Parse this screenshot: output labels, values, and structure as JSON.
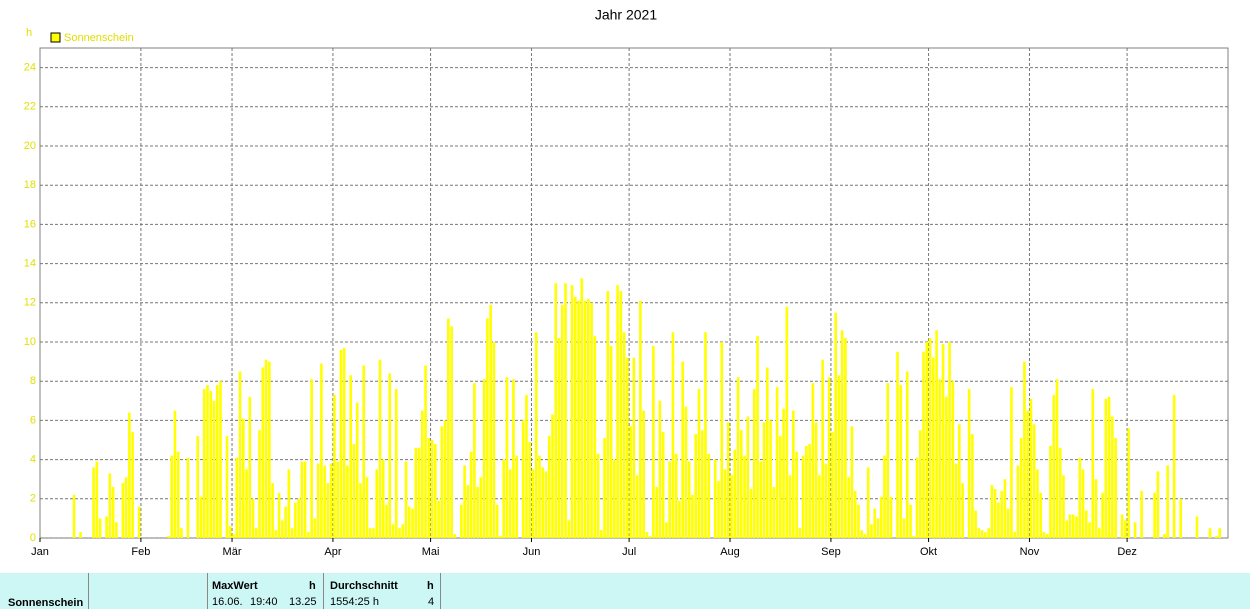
{
  "chart_data": {
    "type": "bar",
    "title": "Jahr 2021",
    "y_label": "h",
    "categories": [
      "Jan",
      null,
      null,
      null,
      null,
      null,
      null,
      null,
      null,
      null,
      null,
      null,
      null,
      null,
      null,
      null,
      null,
      null,
      null,
      null,
      null,
      null,
      null,
      null,
      null,
      null,
      null,
      null,
      null,
      null,
      null,
      "Feb",
      null,
      null,
      null,
      null,
      null,
      null,
      null,
      null,
      null,
      null,
      null,
      null,
      null,
      null,
      null,
      null,
      null,
      null,
      null,
      null,
      null,
      null,
      null,
      null,
      null,
      null,
      null,
      "Mär",
      null,
      null,
      null,
      null,
      null,
      null,
      null,
      null,
      null,
      null,
      null,
      null,
      null,
      null,
      null,
      null,
      null,
      null,
      null,
      null,
      null,
      null,
      null,
      null,
      null,
      null,
      null,
      null,
      null,
      null,
      "Apr",
      null,
      null,
      null,
      null,
      null,
      null,
      null,
      null,
      null,
      null,
      null,
      null,
      null,
      null,
      null,
      null,
      null,
      null,
      null,
      null,
      null,
      null,
      null,
      null,
      null,
      null,
      null,
      null,
      null,
      "Mai",
      null,
      null,
      null,
      null,
      null,
      null,
      null,
      null,
      null,
      null,
      null,
      null,
      null,
      null,
      null,
      null,
      null,
      null,
      null,
      null,
      null,
      null,
      null,
      null,
      null,
      null,
      null,
      null,
      null,
      null,
      "Jun",
      null,
      null,
      null,
      null,
      null,
      null,
      null,
      null,
      null,
      null,
      null,
      null,
      null,
      null,
      null,
      null,
      null,
      null,
      null,
      null,
      null,
      null,
      null,
      null,
      null,
      null,
      null,
      null,
      null,
      "Jul",
      null,
      null,
      null,
      null,
      null,
      null,
      null,
      null,
      null,
      null,
      null,
      null,
      null,
      null,
      null,
      null,
      null,
      null,
      null,
      null,
      null,
      null,
      null,
      null,
      null,
      null,
      null,
      null,
      null,
      null,
      "Aug",
      null,
      null,
      null,
      null,
      null,
      null,
      null,
      null,
      null,
      null,
      null,
      null,
      null,
      null,
      null,
      null,
      null,
      null,
      null,
      null,
      null,
      null,
      null,
      null,
      null,
      null,
      null,
      null,
      null,
      null,
      "Sep",
      null,
      null,
      null,
      null,
      null,
      null,
      null,
      null,
      null,
      null,
      null,
      null,
      null,
      null,
      null,
      null,
      null,
      null,
      null,
      null,
      null,
      null,
      null,
      null,
      null,
      null,
      null,
      null,
      null,
      "Okt",
      null,
      null,
      null,
      null,
      null,
      null,
      null,
      null,
      null,
      null,
      null,
      null,
      null,
      null,
      null,
      null,
      null,
      null,
      null,
      null,
      null,
      null,
      null,
      null,
      null,
      null,
      null,
      null,
      null,
      null,
      "Nov",
      null,
      null,
      null,
      null,
      null,
      null,
      null,
      null,
      null,
      null,
      null,
      null,
      null,
      null,
      null,
      null,
      null,
      null,
      null,
      null,
      null,
      null,
      null,
      null,
      null,
      null,
      null,
      null,
      null,
      "Dez",
      null,
      null,
      null,
      null,
      null,
      null,
      null,
      null,
      null,
      null,
      null,
      null,
      null,
      null,
      null,
      null,
      null,
      null,
      null,
      null,
      null,
      null,
      null,
      null,
      null,
      null,
      null,
      null,
      null,
      null
    ],
    "series": [
      {
        "name": "Sonnenschein",
        "color": "#ffff00",
        "values": [
          0,
          0,
          0,
          0,
          0,
          0,
          0,
          0,
          0,
          0,
          2.2,
          0,
          0.3,
          0,
          0,
          0,
          3.6,
          3.9,
          1,
          0,
          1.1,
          3.3,
          2.6,
          0.8,
          0,
          2.8,
          3.1,
          6.4,
          5.4,
          0,
          1.6,
          0,
          0,
          0,
          0,
          0,
          0,
          0,
          0,
          0.1,
          4.2,
          6.5,
          4.4,
          0.5,
          0,
          4.1,
          0,
          0,
          5.2,
          2.1,
          7.6,
          7.8,
          7.5,
          7,
          7.8,
          8,
          0,
          5.2,
          0.6,
          0.2,
          4.1,
          8.5,
          6.1,
          3.5,
          7.2,
          2,
          0.5,
          5.5,
          8.7,
          9.1,
          9,
          2.8,
          0.4,
          2.3,
          0.9,
          1.6,
          3.5,
          0.5,
          1.8,
          2,
          3.9,
          3.9,
          0.3,
          8.1,
          1,
          3.8,
          8.9,
          3.7,
          2.8,
          3.8,
          7.3,
          3.9,
          9.6,
          9.7,
          3.7,
          8.3,
          4.8,
          6.9,
          2.8,
          8.8,
          3.1,
          0.5,
          0.5,
          3.5,
          9.1,
          4,
          1.7,
          8.4,
          0.7,
          7.6,
          0.5,
          0.7,
          3.9,
          1.6,
          1.5,
          4.6,
          4.6,
          6.5,
          8.8,
          5.1,
          5,
          4.8,
          1.9,
          5.7,
          6,
          11.2,
          10.8,
          0.2,
          0,
          1.7,
          3.7,
          2.7,
          4.4,
          7.9,
          2.6,
          3.1,
          8.1,
          11.2,
          11.9,
          10,
          1.7,
          0.1,
          4,
          8.2,
          3.5,
          8.1,
          4.2,
          0,
          6,
          7.3,
          4.9,
          3.5,
          10.5,
          4.2,
          3.6,
          3.4,
          5.2,
          6.3,
          13,
          10.2,
          11.9,
          13,
          0.9,
          12.9,
          12.3,
          12.1,
          13.25,
          12.1,
          12.2,
          12,
          10.3,
          4.3,
          0.4,
          5.1,
          12.6,
          9.8,
          4,
          12.9,
          12.6,
          10.5,
          9.2,
          5.7,
          9.2,
          3.2,
          12.1,
          6.5,
          0.3,
          0.1,
          9.8,
          2.6,
          7,
          5.4,
          0.8,
          3.9,
          10.5,
          4.3,
          1.9,
          9,
          6.7,
          3.9,
          2.2,
          5.3,
          7.6,
          5.5,
          10.5,
          4.3,
          0,
          4,
          2.9,
          10,
          3.5,
          5.9,
          3.2,
          4.5,
          8.2,
          5.5,
          4.2,
          6.2,
          2.5,
          7.6,
          10.3,
          3.9,
          5.9,
          8.7,
          6,
          2.6,
          7.7,
          5.2,
          6.6,
          11.8,
          3.2,
          6.5,
          4.4,
          0.5,
          4.2,
          4.7,
          4.8,
          7.9,
          5.9,
          3.2,
          9.1,
          3.8,
          8.2,
          5.4,
          11.5,
          8.3,
          10.6,
          10.2,
          3.1,
          5.7,
          2.4,
          1.7,
          0.4,
          0.2,
          3.6,
          0.7,
          1.5,
          1,
          2.1,
          4.2,
          7.9,
          2.1,
          0,
          9.5,
          7.8,
          1,
          8.5,
          1.7,
          0.1,
          4.1,
          5.5,
          9.5,
          10,
          10.2,
          9.2,
          10.6,
          8.1,
          9.9,
          7.2,
          10,
          8,
          3.8,
          5.8,
          2.8,
          0,
          7.6,
          5.3,
          1.4,
          0.5,
          0.4,
          0.3,
          0.5,
          2.7,
          2.5,
          1.8,
          2.4,
          3,
          1.5,
          7.7,
          0.3,
          3.7,
          5.1,
          9,
          6.5,
          7.1,
          5.8,
          3.5,
          2.3,
          0.3,
          0.2,
          4.7,
          7.3,
          8.1,
          4.6,
          3.2,
          0.9,
          1.2,
          1.2,
          1.1,
          4.1,
          3.5,
          1.4,
          0.8,
          7.6,
          3,
          0.5,
          2.3,
          7.1,
          7.2,
          6.2,
          5.1,
          0,
          1.2,
          0.9,
          5.6,
          0,
          0.8,
          0,
          2.4,
          0,
          0,
          0,
          2.3,
          3.4,
          0,
          0.2,
          3.7,
          0,
          7.3,
          0,
          2,
          0,
          0,
          0,
          0,
          1.1,
          0,
          0,
          0,
          0.5,
          0,
          0.1,
          0.5,
          0,
          0
        ]
      }
    ],
    "ylim": [
      0,
      25
    ],
    "yticks": [
      0,
      2,
      4,
      6,
      8,
      10,
      12,
      14,
      16,
      18,
      20,
      22,
      24
    ],
    "grid": true,
    "legend": "top-left"
  },
  "table": {
    "row_label": "Sonnenschein",
    "max_header": "MaxWert",
    "max_unit": "h",
    "max_date": "16.06.",
    "max_time": "19:40",
    "max_value": 13.25,
    "avg_header": "Durchschnitt",
    "avg_unit": "h",
    "avg_total": "1554:25 h",
    "avg_value": 4
  }
}
